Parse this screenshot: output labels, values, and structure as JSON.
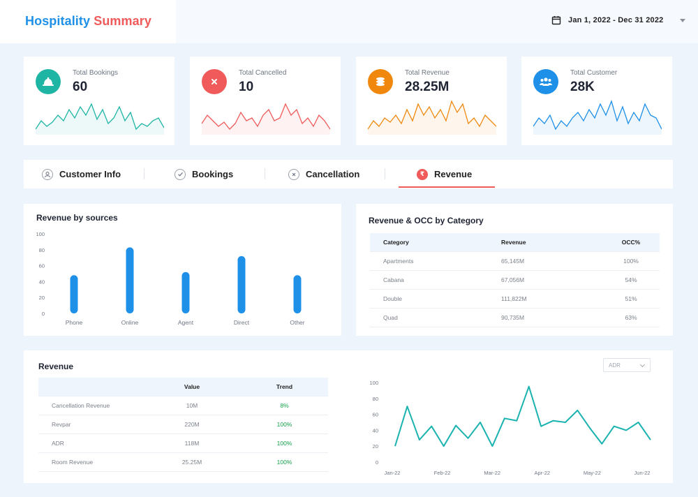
{
  "header": {
    "title_part1": "Hospitality",
    "title_part2": "Summary",
    "date_range": "Jan 1, 2022 - Dec 31 2022"
  },
  "kpis": [
    {
      "label": "Total Bookings",
      "value": "60",
      "icon": "bell-icon",
      "color": "#1eb5a5",
      "spark": [
        4,
        10,
        6,
        9,
        14,
        10,
        18,
        12,
        20,
        14,
        22,
        11,
        18,
        8,
        12,
        20,
        10,
        16,
        4,
        8,
        6,
        10,
        12,
        5
      ]
    },
    {
      "label": "Total Cancelled",
      "value": "10",
      "icon": "close-icon",
      "color": "#f05a5a",
      "spark": [
        8,
        14,
        10,
        6,
        9,
        4,
        8,
        16,
        10,
        12,
        6,
        14,
        18,
        10,
        12,
        22,
        14,
        18,
        8,
        12,
        6,
        14,
        10,
        4
      ]
    },
    {
      "label": "Total Revenue",
      "value": "28.25M",
      "icon": "coins-icon",
      "color": "#f0880e",
      "spark": [
        4,
        10,
        6,
        12,
        9,
        14,
        8,
        18,
        10,
        22,
        14,
        20,
        12,
        18,
        10,
        24,
        16,
        22,
        8,
        12,
        6,
        14,
        10,
        6
      ]
    },
    {
      "label": "Total Customer",
      "value": "28K",
      "icon": "users-icon",
      "color": "#1e90e8",
      "spark": [
        6,
        12,
        8,
        14,
        4,
        10,
        6,
        12,
        16,
        10,
        18,
        12,
        22,
        14,
        24,
        10,
        20,
        8,
        16,
        10,
        22,
        14,
        12,
        4
      ]
    }
  ],
  "tabs": [
    {
      "label": "Customer Info",
      "icon": "user-icon",
      "active": false
    },
    {
      "label": "Bookings",
      "icon": "check-icon",
      "active": false
    },
    {
      "label": "Cancellation",
      "icon": "close-icon",
      "active": false
    },
    {
      "label": "Revenue",
      "icon": "rupee-icon",
      "active": true
    }
  ],
  "revenue_sources": {
    "title": "Revenue by sources",
    "chart_data": {
      "type": "bar",
      "categories": [
        "Phone",
        "Online",
        "Agent",
        "Direct",
        "Other"
      ],
      "values": [
        48,
        83,
        52,
        72,
        48
      ],
      "ylim": [
        0,
        100
      ],
      "yticks": [
        0,
        20,
        40,
        60,
        80,
        100
      ],
      "color": "#1e90e8"
    }
  },
  "category_table": {
    "title": "Revenue & OCC by Category",
    "headers": [
      "Category",
      "Revenue",
      "OCC%"
    ],
    "rows": [
      [
        "Apartments",
        "65,145M",
        "100%"
      ],
      [
        "Cabana",
        "67,056M",
        "54%"
      ],
      [
        "Double",
        "111,822M",
        "51%"
      ],
      [
        "Quad",
        "90,735M",
        "63%"
      ]
    ]
  },
  "revenue_panel": {
    "title": "Revenue",
    "headers": [
      "",
      "Value",
      "Trend"
    ],
    "rows": [
      [
        "Cancellation Revenue",
        "10M",
        "8%"
      ],
      [
        "Revpar",
        "220M",
        "100%"
      ],
      [
        "ADR",
        "118M",
        "100%"
      ],
      [
        "Room Revenue",
        "25.25M",
        "100%"
      ]
    ],
    "select_value": "ADR",
    "chart_data": {
      "type": "line",
      "x_ticks": [
        "Jan-22",
        "Feb-22",
        "Mar-22",
        "Apr-22",
        "May-22",
        "Jun-22"
      ],
      "ylim": [
        0,
        100
      ],
      "yticks": [
        0,
        20,
        40,
        60,
        80,
        100
      ],
      "color": "#1ab3b0",
      "values": [
        20,
        70,
        28,
        45,
        20,
        46,
        30,
        50,
        20,
        55,
        52,
        95,
        45,
        52,
        50,
        65,
        43,
        23,
        45,
        40,
        50,
        28
      ]
    }
  }
}
